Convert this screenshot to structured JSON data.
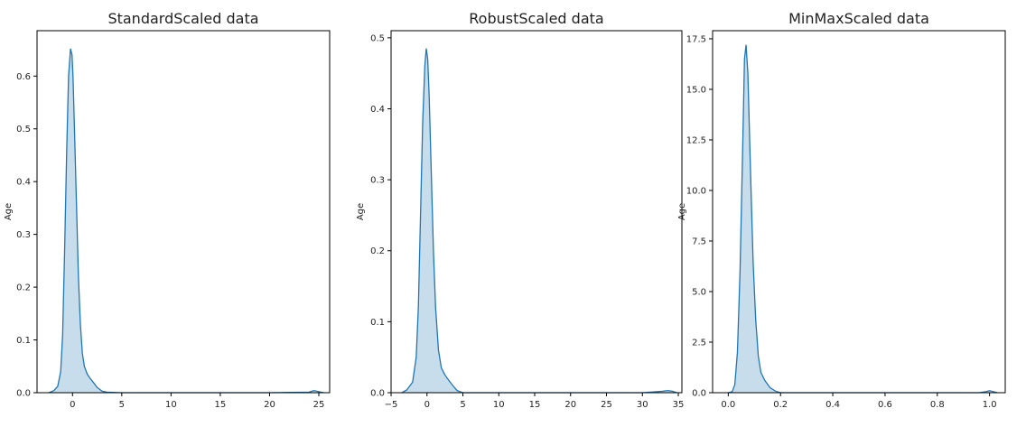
{
  "figure": {
    "colors": {
      "line": "#1f77b4",
      "fill": "#1f77b4",
      "axis": "#000000"
    }
  },
  "chart_data": [
    {
      "type": "area",
      "title": "StandardScaled data",
      "xlabel": "",
      "ylabel": "Age",
      "xlim": [
        -3.6,
        26.1
      ],
      "ylim": [
        0,
        0.686
      ],
      "xticks": [
        0,
        5,
        10,
        15,
        20,
        25
      ],
      "xtick_labels": [
        "0",
        "5",
        "10",
        "15",
        "20",
        "25"
      ],
      "yticks": [
        0.0,
        0.1,
        0.2,
        0.3,
        0.4,
        0.5,
        0.6
      ],
      "ytick_labels": [
        "0.0",
        "0.1",
        "0.2",
        "0.3",
        "0.4",
        "0.5",
        "0.6"
      ],
      "grid": false,
      "series": [
        {
          "x": [
            -2.4,
            -1.9,
            -1.5,
            -1.2,
            -1.0,
            -0.8,
            -0.6,
            -0.4,
            -0.2,
            -0.05,
            0.05,
            0.2,
            0.4,
            0.6,
            0.8,
            1.0,
            1.2,
            1.5,
            1.8,
            2.1,
            2.5,
            3.0,
            3.5,
            5,
            10,
            15,
            20,
            24.0,
            24.5,
            25.0,
            25.5
          ],
          "y": [
            0,
            0.004,
            0.012,
            0.04,
            0.11,
            0.27,
            0.45,
            0.6,
            0.652,
            0.64,
            0.6,
            0.5,
            0.36,
            0.22,
            0.13,
            0.075,
            0.05,
            0.035,
            0.027,
            0.02,
            0.01,
            0.003,
            0.001,
            0,
            0,
            0,
            0,
            0.001,
            0.004,
            0.002,
            0
          ]
        }
      ]
    },
    {
      "type": "area",
      "title": "RobustScaled data",
      "xlabel": "",
      "ylabel": "Age",
      "xlim": [
        -5,
        35.5
      ],
      "ylim": [
        0,
        0.51
      ],
      "xticks": [
        -5,
        0,
        5,
        10,
        15,
        20,
        25,
        30,
        35
      ],
      "xtick_labels": [
        "−5",
        "0",
        "5",
        "10",
        "15",
        "20",
        "25",
        "30",
        "35"
      ],
      "yticks": [
        0.0,
        0.1,
        0.2,
        0.3,
        0.4,
        0.5
      ],
      "ytick_labels": [
        "0.0",
        "0.1",
        "0.2",
        "0.3",
        "0.4",
        "0.5"
      ],
      "grid": false,
      "series": [
        {
          "x": [
            -3.5,
            -2.8,
            -2.0,
            -1.5,
            -1.2,
            -0.9,
            -0.6,
            -0.3,
            -0.1,
            0.1,
            0.3,
            0.6,
            0.9,
            1.2,
            1.6,
            2.0,
            2.5,
            3.0,
            3.6,
            4.2,
            5,
            10,
            20,
            30,
            32.8,
            33.5,
            34.2,
            34.8
          ],
          "y": [
            0,
            0.004,
            0.015,
            0.05,
            0.12,
            0.25,
            0.38,
            0.46,
            0.485,
            0.47,
            0.42,
            0.31,
            0.2,
            0.12,
            0.06,
            0.035,
            0.025,
            0.018,
            0.01,
            0.003,
            0,
            0,
            0,
            0,
            0.002,
            0.003,
            0.002,
            0
          ]
        }
      ]
    },
    {
      "type": "area",
      "title": "MinMaxScaled data",
      "xlabel": "",
      "ylabel": "Age",
      "xlim": [
        -0.06,
        1.06
      ],
      "ylim": [
        0,
        17.9
      ],
      "xticks": [
        0.0,
        0.2,
        0.4,
        0.6,
        0.8,
        1.0
      ],
      "xtick_labels": [
        "0.0",
        "0.2",
        "0.4",
        "0.6",
        "0.8",
        "1.0"
      ],
      "yticks": [
        0.0,
        2.5,
        5.0,
        7.5,
        10.0,
        12.5,
        15.0,
        17.5
      ],
      "ytick_labels": [
        "0.0",
        "2.5",
        "5.0",
        "7.5",
        "10.0",
        "12.5",
        "15.0",
        "17.5"
      ],
      "grid": false,
      "series": [
        {
          "x": [
            0.0,
            0.015,
            0.025,
            0.035,
            0.045,
            0.055,
            0.062,
            0.068,
            0.075,
            0.085,
            0.095,
            0.105,
            0.115,
            0.125,
            0.14,
            0.16,
            0.18,
            0.2,
            0.3,
            0.5,
            0.8,
            0.96,
            0.985,
            1.0,
            1.015,
            1.03
          ],
          "y": [
            0,
            0.05,
            0.4,
            2.0,
            6.0,
            12.0,
            16.5,
            17.2,
            15.8,
            11.0,
            6.5,
            3.6,
            1.8,
            1.0,
            0.6,
            0.25,
            0.08,
            0,
            0,
            0,
            0,
            0,
            0.05,
            0.1,
            0.05,
            0
          ]
        }
      ]
    }
  ]
}
